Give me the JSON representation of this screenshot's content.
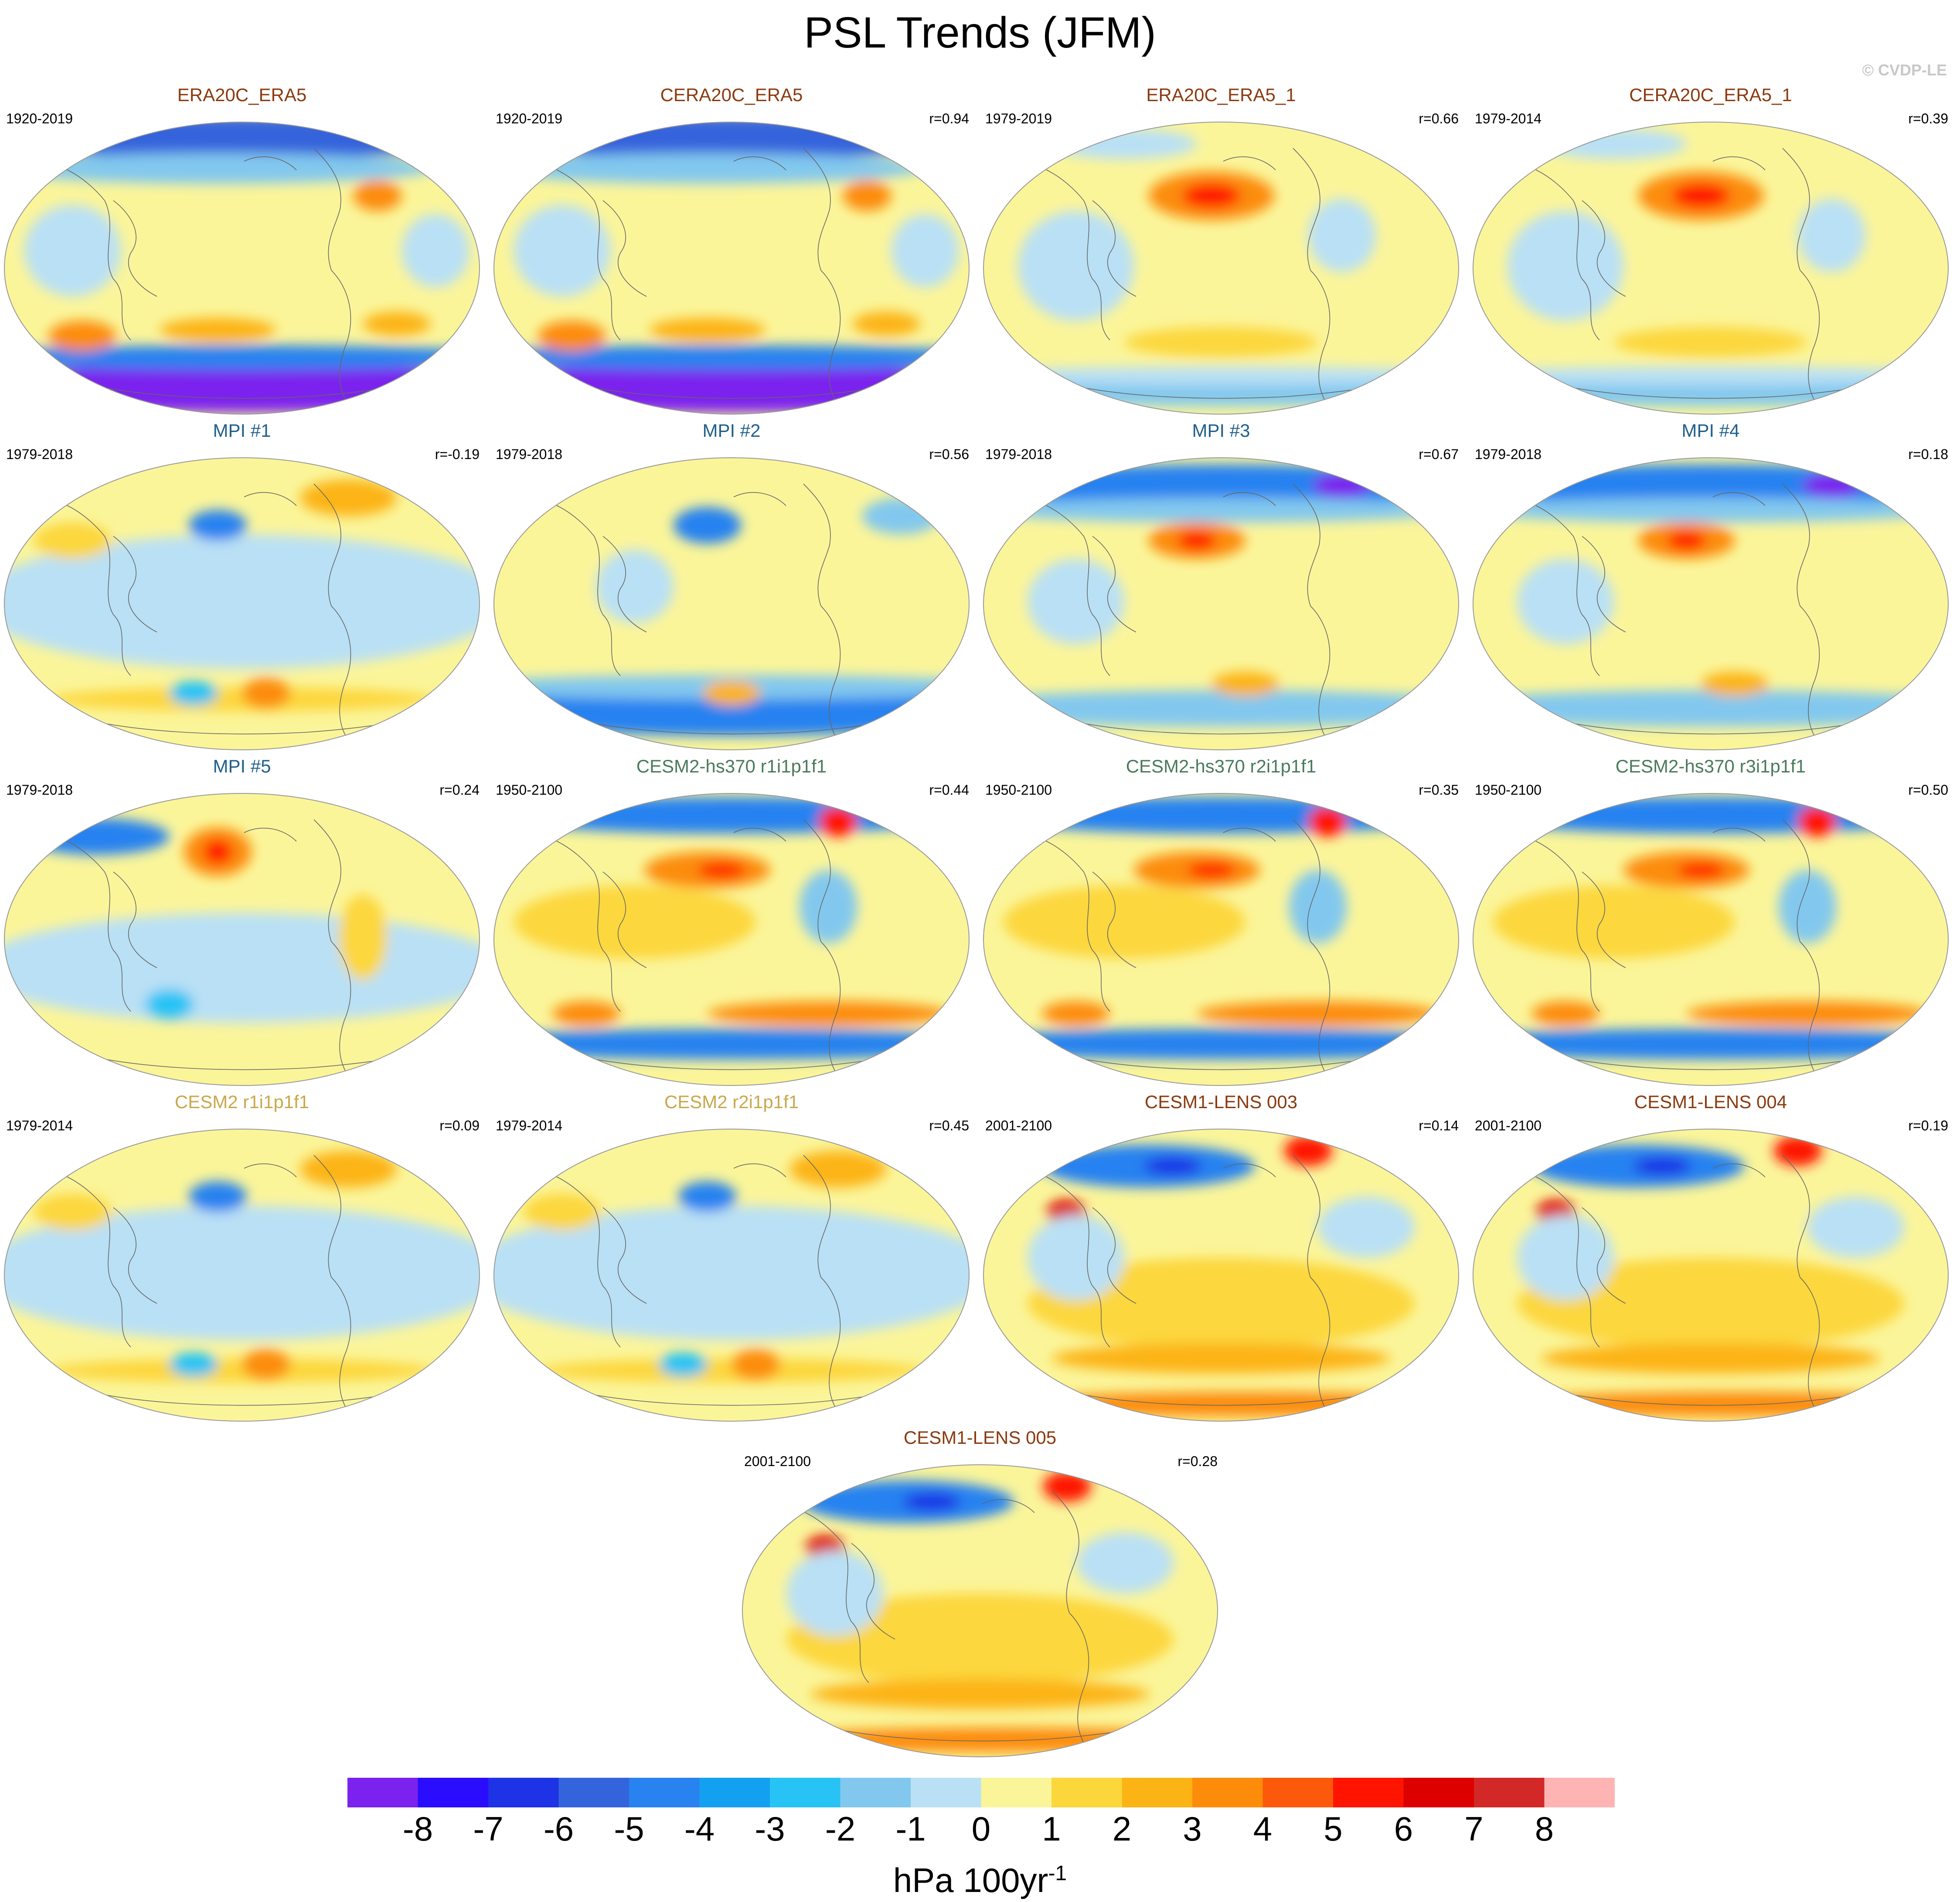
{
  "title": "PSL Trends (JFM)",
  "credit": "© CVDP-LE",
  "colors": {
    "title_brown": "#8b3a0f",
    "title_teal": "#1f5f8b",
    "title_green": "#4a7a5a",
    "title_gold": "#c8a84a",
    "ocean_base": "#fbf59a",
    "land_line": "#666666"
  },
  "panels": [
    {
      "title": "ERA20C_ERA5",
      "title_color": "brown",
      "period": "1920-2019",
      "r": "",
      "pattern": "strong_south_neg"
    },
    {
      "title": "CERA20C_ERA5",
      "title_color": "brown",
      "period": "1920-2019",
      "r": "r=0.94",
      "pattern": "strong_south_neg"
    },
    {
      "title": "ERA20C_ERA5_1",
      "title_color": "brown",
      "period": "1979-2019",
      "r": "r=0.66",
      "pattern": "pacific_high"
    },
    {
      "title": "CERA20C_ERA5_1",
      "title_color": "brown",
      "period": "1979-2014",
      "r": "r=0.39",
      "pattern": "pacific_high"
    },
    {
      "title": "MPI #1",
      "title_color": "teal",
      "period": "1979-2018",
      "r": "r=-0.19",
      "pattern": "weak_mixed"
    },
    {
      "title": "MPI #2",
      "title_color": "teal",
      "period": "1979-2018",
      "r": "r=0.56",
      "pattern": "south_blue"
    },
    {
      "title": "MPI #3",
      "title_color": "teal",
      "period": "1979-2018",
      "r": "r=0.67",
      "pattern": "north_blue_pac_high"
    },
    {
      "title": "MPI #4",
      "title_color": "teal",
      "period": "1979-2018",
      "r": "r=0.18",
      "pattern": "north_blue_pac_high"
    },
    {
      "title": "MPI #5",
      "title_color": "teal",
      "period": "1979-2018",
      "r": "r=0.24",
      "pattern": "pac_red_mixed"
    },
    {
      "title": "CESM2-hs370 r1i1p1f1",
      "title_color": "green",
      "period": "1950-2100",
      "r": "r=0.44",
      "pattern": "cesm2_hs"
    },
    {
      "title": "CESM2-hs370 r2i1p1f1",
      "title_color": "green",
      "period": "1950-2100",
      "r": "r=0.35",
      "pattern": "cesm2_hs"
    },
    {
      "title": "CESM2-hs370 r3i1p1f1",
      "title_color": "green",
      "period": "1950-2100",
      "r": "r=0.50",
      "pattern": "cesm2_hs"
    },
    {
      "title": "CESM2 r1i1p1f1",
      "title_color": "gold",
      "period": "1979-2014",
      "r": "r=0.09",
      "pattern": "weak_mixed"
    },
    {
      "title": "CESM2 r2i1p1f1",
      "title_color": "gold",
      "period": "1979-2014",
      "r": "r=0.45",
      "pattern": "weak_mixed"
    },
    {
      "title": "CESM1-LENS 003",
      "title_color": "brown",
      "period": "2001-2100",
      "r": "r=0.14",
      "pattern": "lens"
    },
    {
      "title": "CESM1-LENS 004",
      "title_color": "brown",
      "period": "2001-2100",
      "r": "r=0.19",
      "pattern": "lens"
    },
    {
      "title": "CESM1-LENS 005",
      "title_color": "brown",
      "period": "2001-2100",
      "r": "r=0.28",
      "pattern": "lens"
    }
  ],
  "colorbar": {
    "colors": [
      "#7b22ee",
      "#2a0cff",
      "#1e32e6",
      "#3464dc",
      "#2882f0",
      "#14a0f0",
      "#28c3f5",
      "#82c8ee",
      "#b9e0f5",
      "#fbf59a",
      "#fcd73c",
      "#fcb414",
      "#fc8c0a",
      "#fc5a0a",
      "#ff1400",
      "#dc0000",
      "#d22828",
      "#ffb4b4"
    ],
    "ticks": [
      "-8",
      "-7",
      "-6",
      "-5",
      "-4",
      "-3",
      "-2",
      "-1",
      "0",
      "1",
      "2",
      "3",
      "4",
      "5",
      "6",
      "7",
      "8"
    ],
    "units": "hPa 100yr",
    "units_exp": "-1"
  }
}
